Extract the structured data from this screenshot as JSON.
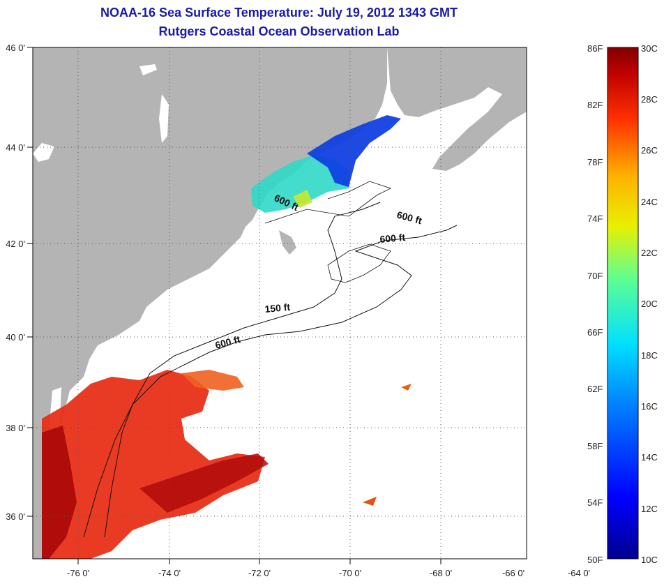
{
  "title": "NOAA-16 Sea Surface Temperature:  July 19, 2012 1343 GMT",
  "subtitle": "Rutgers Coastal Ocean Observation Lab",
  "axes": {
    "lat_ticks": [
      "46 0'",
      "44 0'",
      "42 0'",
      "40 0'",
      "38 0'",
      "36 0'"
    ],
    "lon_ticks": [
      "-76 0'",
      "-74 0'",
      "-72 0'",
      "-70 0'",
      "-68 0'",
      "-66 0'",
      "-64 0'"
    ]
  },
  "contour_labels": [
    "600 ft",
    "600 ft",
    "600 ft",
    "150 ft",
    "600 ft"
  ],
  "colorbar": {
    "fahrenheit": [
      "86F",
      "82F",
      "78F",
      "74F",
      "70F",
      "66F",
      "62F",
      "58F",
      "54F",
      "50F"
    ],
    "celsius": [
      "30C",
      "28C",
      "26C",
      "24C",
      "22C",
      "20C",
      "18C",
      "16C",
      "14C",
      "12C",
      "10C"
    ]
  },
  "colors": {
    "title": "#1a1aa8",
    "land": "#b4b4b4",
    "water": "#ffffff"
  }
}
